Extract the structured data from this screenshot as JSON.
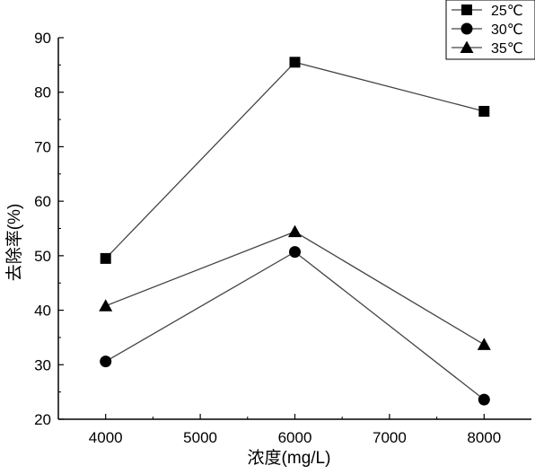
{
  "chart_data": {
    "type": "line",
    "title": "",
    "xlabel": "浓度(mg/L)",
    "ylabel": "去除率(%)",
    "xlim": [
      3500,
      8500
    ],
    "ylim": [
      20,
      90
    ],
    "x_ticks": [
      4000,
      5000,
      6000,
      7000,
      8000
    ],
    "y_ticks": [
      20,
      30,
      40,
      50,
      60,
      70,
      80,
      90
    ],
    "grid": false,
    "legend_position": "top-right",
    "x": [
      4000,
      6000,
      8000
    ],
    "series": [
      {
        "name": "25℃",
        "marker": "square",
        "values": [
          49.5,
          85.5,
          76.5
        ]
      },
      {
        "name": "30℃",
        "marker": "circle",
        "values": [
          30.6,
          50.7,
          23.6
        ]
      },
      {
        "name": "35℃",
        "marker": "triangle",
        "values": [
          40.8,
          54.4,
          33.7
        ]
      }
    ]
  }
}
